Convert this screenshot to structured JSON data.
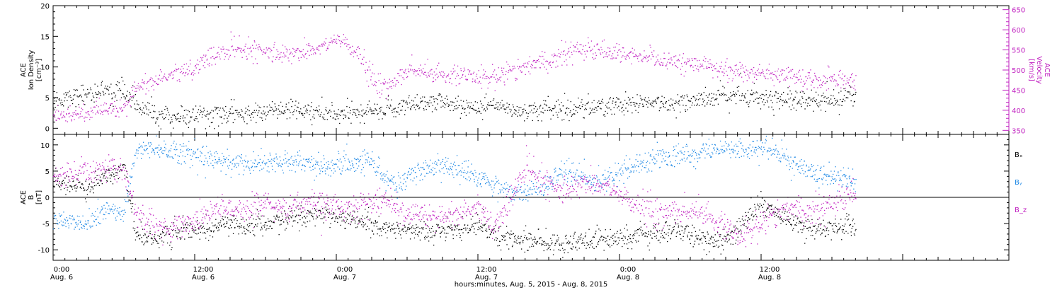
{
  "chart_data": [
    {
      "type": "scatter",
      "panel": "top",
      "ylabel_left": [
        "ACE",
        "Ion Density",
        "[cm⁻³]"
      ],
      "ylabel_right": [
        "ACE",
        "Velocity",
        "[km/s]"
      ],
      "ylim_left": [
        -1,
        20
      ],
      "ylim_right": [
        340,
        660
      ],
      "yticks_left": [
        "0",
        "5",
        "10",
        "15",
        "20"
      ],
      "yticks_right": [
        "350",
        "400",
        "450",
        "500",
        "550",
        "600",
        "650"
      ],
      "colors": {
        "density": "#000000",
        "velocity": "#c020c0"
      },
      "series": [
        {
          "name": "",
          "axis": "left",
          "color": "#000000",
          "knots": [
            [
              0,
              4.5
            ],
            [
              2,
              5.5
            ],
            [
              4,
              6
            ],
            [
              6,
              6.3
            ],
            [
              7,
              4
            ],
            [
              8,
              3
            ],
            [
              9,
              2
            ],
            [
              10,
              1.8
            ],
            [
              12,
              2.2
            ],
            [
              15,
              2.2
            ],
            [
              18,
              2.8
            ],
            [
              20,
              3
            ],
            [
              22,
              2.8
            ],
            [
              24,
              2.2
            ],
            [
              26,
              2.5
            ],
            [
              28,
              3
            ],
            [
              30,
              4
            ],
            [
              32,
              4.5
            ],
            [
              34,
              4
            ],
            [
              36,
              3.5
            ],
            [
              38,
              3.5
            ],
            [
              40,
              3
            ],
            [
              42,
              3.2
            ],
            [
              44,
              3.3
            ],
            [
              46,
              3.5
            ],
            [
              48,
              3.8
            ],
            [
              50,
              4
            ],
            [
              52,
              4.2
            ],
            [
              54,
              4.6
            ],
            [
              56,
              5
            ],
            [
              58,
              5.5
            ],
            [
              60,
              5.2
            ],
            [
              62,
              4.8
            ],
            [
              64,
              4.4
            ],
            [
              66,
              4.6
            ],
            [
              68,
              5.4
            ]
          ],
          "t_range": [
            0,
            68
          ],
          "noise": 1.1,
          "count": 1400
        },
        {
          "name": "",
          "axis": "right",
          "color": "#c020c0",
          "knots": [
            [
              0,
              390
            ],
            [
              3,
              395
            ],
            [
              6,
              402
            ],
            [
              7,
              460
            ],
            [
              9,
              480
            ],
            [
              11,
              495
            ],
            [
              13,
              525
            ],
            [
              15,
              555
            ],
            [
              17,
              550
            ],
            [
              19,
              540
            ],
            [
              21,
              545
            ],
            [
              23,
              560
            ],
            [
              24,
              580
            ],
            [
              25,
              560
            ],
            [
              26,
              535
            ],
            [
              27,
              475
            ],
            [
              28,
              460
            ],
            [
              29,
              470
            ],
            [
              30,
              505
            ],
            [
              32,
              490
            ],
            [
              34,
              485
            ],
            [
              36,
              480
            ],
            [
              38,
              495
            ],
            [
              40,
              510
            ],
            [
              42,
              525
            ],
            [
              44,
              555
            ],
            [
              46,
              550
            ],
            [
              48,
              540
            ],
            [
              50,
              530
            ],
            [
              52,
              520
            ],
            [
              54,
              515
            ],
            [
              56,
              508
            ],
            [
              58,
              500
            ],
            [
              60,
              492
            ],
            [
              62,
              485
            ],
            [
              64,
              480
            ],
            [
              66,
              476
            ],
            [
              68,
              470
            ]
          ],
          "t_range": [
            0,
            68
          ],
          "noise": 16,
          "count": 1400
        }
      ]
    },
    {
      "type": "scatter",
      "panel": "bottom",
      "ylabel_left": [
        "ACE",
        "B",
        "[nT]"
      ],
      "ylim": [
        -12,
        12
      ],
      "yticks": [
        "-10",
        "-5",
        "0",
        "5",
        "10"
      ],
      "zero_line": true,
      "legend": [
        {
          "label": "Bₓ",
          "color": "#000000"
        },
        {
          "label": "Bᵧ",
          "color": "#1e88e5"
        },
        {
          "label": "B_z",
          "color": "#c020c0"
        }
      ],
      "series": [
        {
          "name": "Bx",
          "color": "#000000",
          "knots": [
            [
              0,
              3
            ],
            [
              3,
              2
            ],
            [
              5,
              5
            ],
            [
              6,
              6
            ],
            [
              7,
              -7
            ],
            [
              9,
              -7.5
            ],
            [
              11,
              -6.5
            ],
            [
              14,
              -5.5
            ],
            [
              17,
              -5
            ],
            [
              20,
              -4
            ],
            [
              23,
              -3
            ],
            [
              25,
              -4
            ],
            [
              28,
              -5.5
            ],
            [
              31,
              -6.5
            ],
            [
              34,
              -6
            ],
            [
              36,
              -5
            ],
            [
              38,
              -7.5
            ],
            [
              40,
              -8
            ],
            [
              42,
              -9
            ],
            [
              44,
              -8.5
            ],
            [
              47,
              -8
            ],
            [
              50,
              -7
            ],
            [
              53,
              -6
            ],
            [
              55,
              -8
            ],
            [
              56,
              -9
            ],
            [
              58,
              -6
            ],
            [
              60,
              -1
            ],
            [
              62,
              -4
            ],
            [
              64,
              -6
            ],
            [
              66,
              -5.5
            ],
            [
              68,
              -5.5
            ]
          ],
          "t_range": [
            0,
            68
          ],
          "noise": 1.3,
          "count": 1600
        },
        {
          "name": "By",
          "color": "#1e88e5",
          "knots": [
            [
              0,
              -4.5
            ],
            [
              3,
              -4.5
            ],
            [
              5,
              -2
            ],
            [
              6,
              -3
            ],
            [
              7,
              9
            ],
            [
              9,
              9.5
            ],
            [
              11,
              8.5
            ],
            [
              14,
              7
            ],
            [
              17,
              6.5
            ],
            [
              20,
              7
            ],
            [
              23,
              6
            ],
            [
              25,
              6
            ],
            [
              27,
              7
            ],
            [
              29,
              2
            ],
            [
              31,
              6
            ],
            [
              33,
              6
            ],
            [
              35,
              5
            ],
            [
              37,
              3
            ],
            [
              39,
              1
            ],
            [
              41,
              1.5
            ],
            [
              43,
              5
            ],
            [
              46,
              3
            ],
            [
              48,
              5
            ],
            [
              50,
              7
            ],
            [
              53,
              8
            ],
            [
              55,
              8.5
            ],
            [
              57,
              9.5
            ],
            [
              59,
              9
            ],
            [
              60,
              10
            ],
            [
              62,
              7
            ],
            [
              64,
              5
            ],
            [
              66,
              4
            ],
            [
              68,
              3
            ]
          ],
          "t_range": [
            0,
            68
          ],
          "noise": 1.4,
          "count": 1600
        },
        {
          "name": "Bz",
          "color": "#c020c0",
          "knots": [
            [
              0,
              4
            ],
            [
              3,
              4.5
            ],
            [
              5,
              5.5
            ],
            [
              6,
              5
            ],
            [
              7,
              -3
            ],
            [
              8,
              -5
            ],
            [
              10,
              -6
            ],
            [
              12,
              -4
            ],
            [
              14,
              -2
            ],
            [
              16,
              -2.5
            ],
            [
              18,
              -1
            ],
            [
              20,
              -2
            ],
            [
              22,
              -1
            ],
            [
              24,
              -1.5
            ],
            [
              26,
              -2
            ],
            [
              28,
              0
            ],
            [
              30,
              -3
            ],
            [
              32,
              -4
            ],
            [
              34,
              -3
            ],
            [
              36,
              -2
            ],
            [
              37,
              -5
            ],
            [
              38,
              -4
            ],
            [
              40,
              6
            ],
            [
              41,
              4
            ],
            [
              43,
              1
            ],
            [
              45,
              3
            ],
            [
              47,
              2
            ],
            [
              49,
              -1
            ],
            [
              51,
              -3
            ],
            [
              53,
              -2.5
            ],
            [
              55,
              -3
            ],
            [
              57,
              -6
            ],
            [
              58,
              -8
            ],
            [
              60,
              -4
            ],
            [
              62,
              -2
            ],
            [
              64,
              -2.5
            ],
            [
              66,
              -1
            ],
            [
              68,
              1
            ]
          ],
          "t_range": [
            0,
            68
          ],
          "noise": 1.6,
          "count": 1600
        }
      ]
    }
  ],
  "x_axis": {
    "range_hours": [
      0,
      81
    ],
    "ticks": [
      {
        "t": 0,
        "time": "0:00",
        "date": "Aug. 6"
      },
      {
        "t": 12,
        "time": "12:00",
        "date": "Aug. 6"
      },
      {
        "t": 24,
        "time": "0:00",
        "date": "Aug. 7"
      },
      {
        "t": 36,
        "time": "12:00",
        "date": "Aug. 7"
      },
      {
        "t": 48,
        "time": "0:00",
        "date": "Aug. 8"
      },
      {
        "t": 60,
        "time": "12:00",
        "date": "Aug. 8"
      }
    ],
    "xlabel": "hours:minutes, Aug.  5, 2015 - Aug.  8, 2015"
  }
}
